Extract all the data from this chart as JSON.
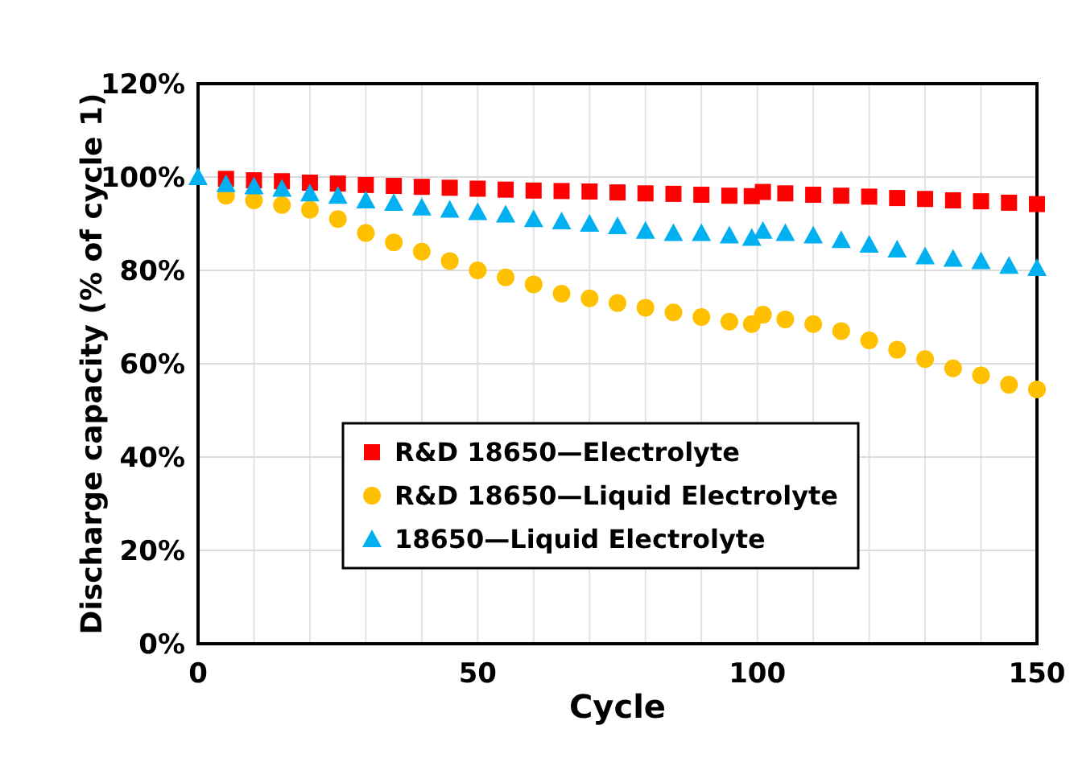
{
  "chart_data": {
    "type": "scatter",
    "xlabel": "Cycle",
    "ylabel": "Discharge capacity (% of cycle 1)",
    "x": [
      0,
      5,
      10,
      15,
      20,
      25,
      30,
      35,
      40,
      45,
      50,
      55,
      60,
      65,
      70,
      75,
      80,
      85,
      90,
      95,
      99,
      101,
      105,
      110,
      115,
      120,
      125,
      130,
      135,
      140,
      145,
      150
    ],
    "series": [
      {
        "name": "R&D 18650—Electrolyte",
        "color": "#ff0000",
        "marker": "square",
        "values": [
          null,
          99.6,
          99.3,
          99.1,
          98.8,
          98.6,
          98.3,
          98.1,
          97.9,
          97.7,
          97.5,
          97.3,
          97.1,
          97,
          96.9,
          96.7,
          96.5,
          96.4,
          96.2,
          96,
          95.9,
          96.8,
          96.5,
          96.2,
          96,
          95.8,
          95.5,
          95.3,
          95,
          94.8,
          94.5,
          94.2
        ]
      },
      {
        "name": "R&D 18650—Liquid Electrolyte",
        "color": "#ffc000",
        "marker": "circle",
        "values": [
          null,
          96,
          95,
          94,
          93,
          91,
          88,
          86,
          84,
          82,
          80,
          78.5,
          77,
          75,
          74,
          73,
          72,
          71,
          70,
          69,
          68.5,
          70.5,
          69.5,
          68.5,
          67,
          65,
          63,
          61,
          59,
          57.5,
          55.5,
          54.5
        ]
      },
      {
        "name": "18650—Liquid Electrolyte",
        "color": "#00b0f0",
        "marker": "triangle",
        "values": [
          100,
          98.5,
          98,
          97.5,
          96.5,
          96,
          95,
          94.5,
          93.5,
          93,
          92.5,
          92,
          91,
          90.5,
          90,
          89.5,
          88.5,
          88,
          88,
          87.5,
          87,
          88.5,
          88,
          87.5,
          86.5,
          85.5,
          84.5,
          83,
          82.5,
          82,
          81,
          80.5
        ]
      }
    ],
    "xlim": [
      0,
      150
    ],
    "xticks": [
      0,
      {
        "value": 10,
        "label": null
      },
      {
        "value": 20,
        "label": null
      },
      {
        "value": 30,
        "label": null
      },
      {
        "value": 40,
        "label": null
      },
      50,
      {
        "value": 60,
        "label": null
      },
      {
        "value": 70,
        "label": null
      },
      {
        "value": 80,
        "label": null
      },
      {
        "value": 90,
        "label": null
      },
      100,
      {
        "value": 110,
        "label": null
      },
      {
        "value": 120,
        "label": null
      },
      {
        "value": 130,
        "label": null
      },
      {
        "value": 140,
        "label": null
      },
      150
    ],
    "ylim": [
      0,
      120
    ],
    "yticks": [
      {
        "value": 0,
        "label": "0%"
      },
      {
        "value": 20,
        "label": "20%"
      },
      {
        "value": 40,
        "label": "40%"
      },
      {
        "value": 60,
        "label": "60%"
      },
      {
        "value": 80,
        "label": "80%"
      },
      {
        "value": 100,
        "label": "100%"
      },
      {
        "value": 120,
        "label": "120%"
      }
    ],
    "grid": true,
    "legend": "bottom"
  }
}
